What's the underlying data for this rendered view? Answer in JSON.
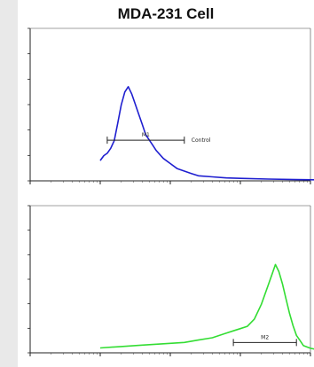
{
  "title": "MDA-231 Cell",
  "chart_data": [
    {
      "type": "line",
      "title": "MDA-231 Cell",
      "series": [
        {
          "color": "#1f1fd0",
          "x": [
            1,
            1.05,
            1.1,
            1.15,
            1.2,
            1.25,
            1.3,
            1.35,
            1.4,
            1.45,
            1.5,
            1.55,
            1.6,
            1.65,
            1.7,
            1.75,
            1.8,
            1.9,
            2.0,
            2.1,
            2.2,
            2.3,
            2.4,
            2.6,
            2.8,
            3.0,
            3.4,
            3.8,
            4.2
          ],
          "y": [
            8,
            10,
            11,
            13,
            16,
            23,
            30,
            35,
            37,
            34,
            30,
            26,
            22,
            18,
            16,
            14,
            12,
            9,
            7,
            5,
            4,
            3,
            2,
            1.5,
            1,
            0.8,
            0.5,
            0.3,
            0.2
          ]
        }
      ],
      "xscale": "log",
      "xlim": [
        1,
        10000
      ],
      "ylim": [
        0,
        60
      ],
      "gate": {
        "label": "M1",
        "from": 1.1,
        "to": 2.2
      },
      "annotation": "Control"
    },
    {
      "type": "line",
      "series": [
        {
          "color": "#33dd33",
          "x": [
            1,
            1.3,
            1.6,
            1.9,
            2.2,
            2.4,
            2.6,
            2.8,
            2.9,
            3.0,
            3.1,
            3.2,
            3.3,
            3.4,
            3.45,
            3.5,
            3.55,
            3.6,
            3.65,
            3.7,
            3.75,
            3.8,
            3.85,
            3.9,
            4.0,
            4.1,
            4.2
          ],
          "y": [
            2,
            2.5,
            3,
            3.5,
            4,
            5,
            6,
            8,
            9,
            10,
            11,
            14,
            20,
            28,
            32,
            36,
            33,
            28,
            22,
            16,
            11,
            7,
            5,
            3,
            2,
            1.5,
            1
          ]
        }
      ],
      "xscale": "log",
      "xlim": [
        1,
        10000
      ],
      "ylim": [
        0,
        60
      ],
      "gate": {
        "label": "M2",
        "from": 2.9,
        "to": 3.8
      }
    }
  ]
}
